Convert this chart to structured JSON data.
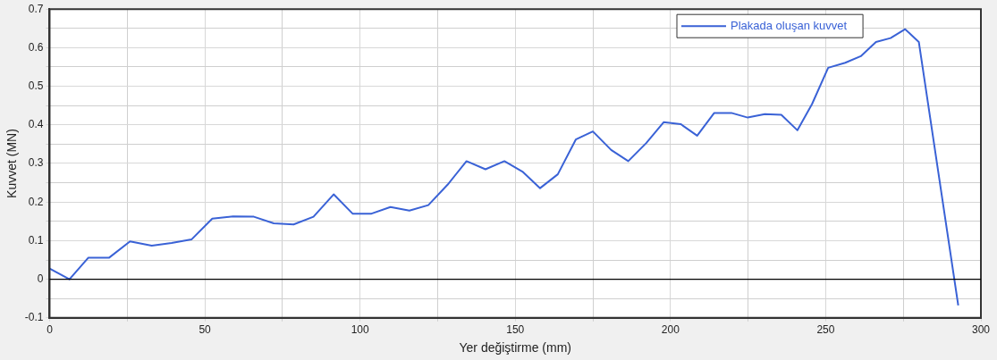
{
  "chart_data": {
    "type": "line",
    "xlabel": "Yer değiştirme (mm)",
    "ylabel": "Kuvvet (MN)",
    "x": [
      0,
      6.4,
      12.5,
      19.2,
      25.9,
      32.9,
      39.3,
      45.7,
      52.4,
      59.1,
      65.8,
      72.2,
      78.6,
      85,
      91.5,
      97.6,
      103.7,
      109.8,
      115.9,
      122,
      128.2,
      134.3,
      140.4,
      146.5,
      152.3,
      158,
      163.7,
      169.5,
      175,
      180.9,
      186.4,
      192.2,
      197.8,
      203.3,
      208.6,
      214.1,
      219.6,
      224.9,
      230.4,
      235.7,
      240.9,
      245.6,
      250.8,
      256.3,
      261.3,
      266.2,
      270.9,
      275.6,
      280,
      292.7
    ],
    "series": [
      {
        "name": "Plakada oluşan kuvvet",
        "color": "#3a62d6",
        "values": [
          0.028,
          0,
          0.056,
          0.056,
          0.098,
          0.087,
          0.094,
          0.103,
          0.157,
          0.163,
          0.162,
          0.145,
          0.142,
          0.162,
          0.22,
          0.17,
          0.17,
          0.187,
          0.178,
          0.192,
          0.245,
          0.306,
          0.285,
          0.306,
          0.279,
          0.236,
          0.272,
          0.362,
          0.383,
          0.335,
          0.306,
          0.353,
          0.407,
          0.402,
          0.372,
          0.431,
          0.431,
          0.419,
          0.428,
          0.426,
          0.386,
          0.454,
          0.548,
          0.561,
          0.578,
          0.615,
          0.625,
          0.648,
          0.615,
          -0.068
        ]
      }
    ],
    "xlim": [
      0,
      300
    ],
    "xticks": [
      0,
      {
        "value": 25,
        "label": null
      },
      50,
      {
        "value": 75,
        "label": null
      },
      100,
      {
        "value": 125,
        "label": null
      },
      150,
      {
        "value": 175,
        "label": null
      },
      200,
      {
        "value": 225,
        "label": null
      },
      250,
      {
        "value": 275,
        "label": null
      },
      300
    ],
    "ylim": [
      -0.1,
      0.7
    ],
    "yticks": [
      -0.1,
      {
        "value": -0.05,
        "label": null
      },
      0,
      {
        "value": 0.05,
        "label": null
      },
      0.1,
      {
        "value": 0.15,
        "label": null
      },
      0.2,
      {
        "value": 0.25,
        "label": null
      },
      0.3,
      {
        "value": 0.35,
        "label": null
      },
      0.4,
      {
        "value": 0.45,
        "label": null
      },
      0.5,
      {
        "value": 0.55,
        "label": null
      },
      0.6,
      {
        "value": 0.65,
        "label": null
      },
      0.7
    ],
    "ref_lines": [
      {
        "axis": "y",
        "value": 0,
        "color": "#000000"
      }
    ],
    "grid": true,
    "legend": "top right",
    "marker": "none",
    "line_style": "solid"
  }
}
